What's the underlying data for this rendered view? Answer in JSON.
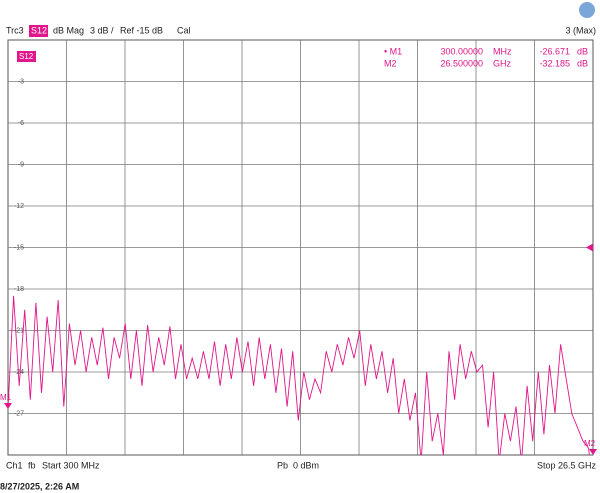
{
  "header": {
    "trace": "Trc3",
    "param": "S12",
    "format": "dB Mag",
    "scale": "3 dB /",
    "ref": "Ref -15 dB",
    "cal": "Cal",
    "max": "3 (Max)"
  },
  "markers": [
    {
      "name": "• M1",
      "label": "M1",
      "x": 0.3,
      "freq": "300.00000",
      "freq_unit": "MHz",
      "value": -26.671,
      "unit": "dB"
    },
    {
      "name": "M2",
      "label": "M2",
      "x": 26.5,
      "freq": "26.500000",
      "freq_unit": "GHz",
      "value": -32.185,
      "unit": "dB"
    }
  ],
  "footer": {
    "channel": "Ch1",
    "fb": "fb",
    "start": "Start 300 MHz",
    "pb": "Pb",
    "power": "0 dBm",
    "stop": "Stop 26.5 GHz"
  },
  "timestamp": "8/27/2025, 2:26 AM",
  "chart_data": {
    "type": "line",
    "trace_label": "S12",
    "color": "#e0168a",
    "ref_level": -15,
    "x_divisions": 10,
    "xlim": [
      0.3,
      26.5
    ],
    "ylim": [
      -30,
      0
    ],
    "yticks": [
      -3,
      -6,
      -9,
      -12,
      -15,
      -18,
      -21,
      -24,
      -27
    ],
    "grid": true,
    "x": [
      0.3,
      0.55,
      0.8,
      1.05,
      1.3,
      1.55,
      1.8,
      2.05,
      2.3,
      2.55,
      2.8,
      3.05,
      3.3,
      3.55,
      3.8,
      4.05,
      4.3,
      4.55,
      4.8,
      5.05,
      5.3,
      5.55,
      5.8,
      6.05,
      6.3,
      6.55,
      6.8,
      7.05,
      7.3,
      7.55,
      7.8,
      8.05,
      8.3,
      8.55,
      8.8,
      9.05,
      9.3,
      9.55,
      9.8,
      10.05,
      10.3,
      10.55,
      10.8,
      11.05,
      11.3,
      11.55,
      11.8,
      12.05,
      12.3,
      12.55,
      12.8,
      13.05,
      13.3,
      13.55,
      13.8,
      14.05,
      14.3,
      14.55,
      14.8,
      15.05,
      15.3,
      15.55,
      15.8,
      16.05,
      16.3,
      16.55,
      16.8,
      17.05,
      17.3,
      17.55,
      17.8,
      18.05,
      18.3,
      18.55,
      18.8,
      19.05,
      19.3,
      19.55,
      19.8,
      20.05,
      20.3,
      20.55,
      20.8,
      21.05,
      21.3,
      21.55,
      21.8,
      22.05,
      22.3,
      22.55,
      22.8,
      23.05,
      23.3,
      23.55,
      23.8,
      24.05,
      24.3,
      24.55,
      24.8,
      25.05,
      25.3,
      25.55,
      25.8,
      26.05,
      26.3,
      26.5
    ],
    "series": [
      {
        "name": "S12",
        "color": "#e0168a",
        "values": [
          -26.671,
          -18.5,
          -25,
          -19.5,
          -26,
          -19,
          -25.5,
          -20,
          -24,
          -18.8,
          -26.5,
          -20.5,
          -23.5,
          -21,
          -24,
          -21.5,
          -23.5,
          -20.8,
          -24.5,
          -21.5,
          -23,
          -20.5,
          -24.5,
          -21,
          -25,
          -20.6,
          -24,
          -21.5,
          -23.5,
          -20.7,
          -24.5,
          -22,
          -24.5,
          -23,
          -24.5,
          -22.5,
          -24.5,
          -21.8,
          -25,
          -22,
          -24.5,
          -21.5,
          -24,
          -21.8,
          -25,
          -21.5,
          -24.5,
          -22,
          -25.5,
          -22.3,
          -26.5,
          -22.5,
          -27.5,
          -24,
          -26,
          -24.5,
          -25.5,
          -22.5,
          -24,
          -22,
          -23.5,
          -21.5,
          -23,
          -21,
          -25,
          -22,
          -24.5,
          -22.5,
          -25.5,
          -23,
          -27,
          -24.5,
          -27.5,
          -25.5,
          -30.5,
          -24,
          -29,
          -27,
          -30,
          -22.5,
          -26,
          -22,
          -24.5,
          -22.5,
          -24,
          -23.5,
          -28,
          -24,
          -30.5,
          -27,
          -29,
          -26.5,
          -30.5,
          -25,
          -29,
          -24,
          -28.5,
          -23.5,
          -27,
          -22,
          -24.5,
          -27,
          -28,
          -29,
          -29.5,
          -32.185
        ]
      }
    ]
  }
}
